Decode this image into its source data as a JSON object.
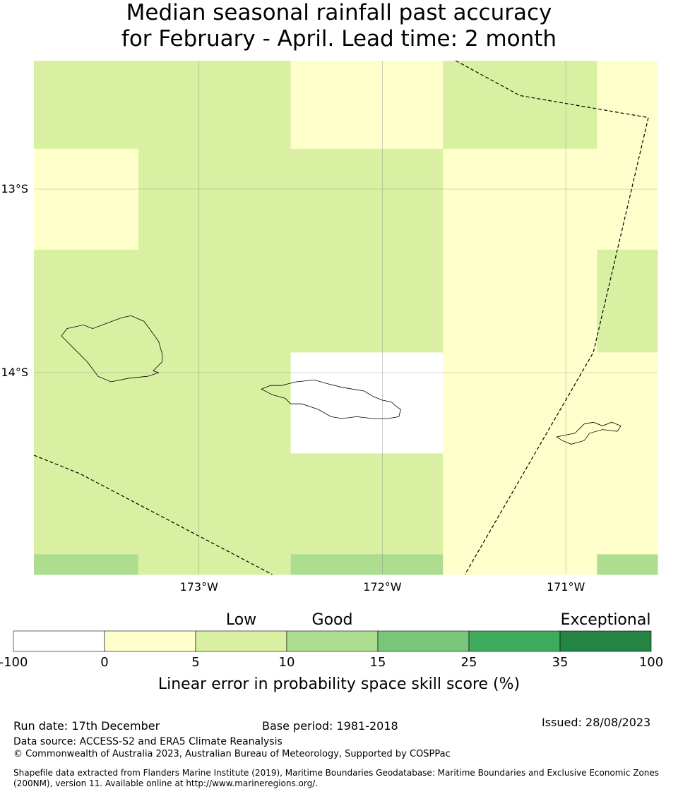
{
  "title": {
    "line1": "Median seasonal rainfall past accuracy",
    "line2": "for February - April. Lead time: 2 month"
  },
  "map": {
    "lon_range": [
      -173.9,
      -170.5
    ],
    "lat_range": [
      -12.3,
      -15.1
    ],
    "lat_ticks": [
      {
        "value": -13,
        "label": "13°S"
      },
      {
        "value": -14,
        "label": "14°S"
      }
    ],
    "lon_ticks": [
      {
        "value": -173,
        "label": "173°W"
      },
      {
        "value": -172,
        "label": "172°W"
      },
      {
        "value": -171,
        "label": "171°W"
      }
    ],
    "grid_on": true,
    "cell_lon_edges": [
      -173.9,
      -173.33,
      -172.5,
      -171.67,
      -170.83,
      -170.5
    ],
    "cell_lat_edges": [
      -12.3,
      -12.78,
      -13.33,
      -13.89,
      -14.44,
      -14.99,
      -15.1
    ],
    "cell_classes": [
      [
        2,
        2,
        1,
        2,
        1
      ],
      [
        1,
        2,
        2,
        1,
        1
      ],
      [
        2,
        2,
        2,
        1,
        2
      ],
      [
        2,
        2,
        0,
        1,
        1
      ],
      [
        2,
        2,
        2,
        1,
        1
      ],
      [
        3,
        2,
        3,
        1,
        3
      ]
    ],
    "boundaries": [
      [
        [
          -171.6,
          -12.3
        ],
        [
          -171.25,
          -12.49
        ],
        [
          -170.55,
          -12.61
        ],
        [
          -170.85,
          -13.89
        ],
        [
          -171.55,
          -15.1
        ]
      ],
      [
        [
          -173.9,
          -14.45
        ],
        [
          -173.65,
          -14.55
        ],
        [
          -172.6,
          -15.1
        ]
      ]
    ],
    "islands": [
      [
        [
          -173.75,
          -13.8
        ],
        [
          -173.72,
          -13.76
        ],
        [
          -173.63,
          -13.74
        ],
        [
          -173.58,
          -13.76
        ],
        [
          -173.5,
          -13.73
        ],
        [
          -173.42,
          -13.7
        ],
        [
          -173.37,
          -13.69
        ],
        [
          -173.3,
          -13.72
        ],
        [
          -173.27,
          -13.76
        ],
        [
          -173.22,
          -13.83
        ],
        [
          -173.2,
          -13.9
        ],
        [
          -173.2,
          -13.94
        ],
        [
          -173.25,
          -13.99
        ],
        [
          -173.22,
          -14.0
        ],
        [
          -173.28,
          -14.02
        ],
        [
          -173.38,
          -14.03
        ],
        [
          -173.48,
          -14.05
        ],
        [
          -173.55,
          -14.02
        ],
        [
          -173.61,
          -13.94
        ],
        [
          -173.68,
          -13.87
        ],
        [
          -173.75,
          -13.8
        ]
      ],
      [
        [
          -172.66,
          -14.09
        ],
        [
          -172.61,
          -14.07
        ],
        [
          -172.55,
          -14.07
        ],
        [
          -172.47,
          -14.05
        ],
        [
          -172.37,
          -14.04
        ],
        [
          -172.3,
          -14.06
        ],
        [
          -172.22,
          -14.08
        ],
        [
          -172.1,
          -14.1
        ],
        [
          -172.05,
          -14.13
        ],
        [
          -172.0,
          -14.15
        ],
        [
          -171.95,
          -14.16
        ],
        [
          -171.93,
          -14.18
        ],
        [
          -171.9,
          -14.2
        ],
        [
          -171.91,
          -14.24
        ],
        [
          -171.97,
          -14.25
        ],
        [
          -172.05,
          -14.25
        ],
        [
          -172.14,
          -14.24
        ],
        [
          -172.22,
          -14.25
        ],
        [
          -172.28,
          -14.24
        ],
        [
          -172.35,
          -14.2
        ],
        [
          -172.44,
          -14.17
        ],
        [
          -172.5,
          -14.17
        ],
        [
          -172.53,
          -14.14
        ],
        [
          -172.6,
          -14.12
        ],
        [
          -172.66,
          -14.09
        ]
      ],
      [
        [
          -171.05,
          -14.35
        ],
        [
          -170.95,
          -14.33
        ],
        [
          -170.9,
          -14.28
        ],
        [
          -170.85,
          -14.27
        ],
        [
          -170.8,
          -14.29
        ],
        [
          -170.75,
          -14.27
        ],
        [
          -170.7,
          -14.29
        ],
        [
          -170.72,
          -14.32
        ],
        [
          -170.8,
          -14.31
        ],
        [
          -170.87,
          -14.33
        ],
        [
          -170.9,
          -14.37
        ],
        [
          -170.97,
          -14.39
        ],
        [
          -171.02,
          -14.37
        ],
        [
          -171.05,
          -14.35
        ]
      ]
    ]
  },
  "colorbar": {
    "category_labels": [
      {
        "text": "Low",
        "at": 2.5
      },
      {
        "text": "Good",
        "at": 3.5
      },
      {
        "text": "Exceptional",
        "at": 6.5
      }
    ],
    "ticks": [
      "-100",
      "0",
      "5",
      "10",
      "15",
      "25",
      "35",
      "100"
    ],
    "colors": [
      "#ffffff",
      "#ffffcc",
      "#d9f0a3",
      "#addd8e",
      "#78c679",
      "#41ab5d",
      "#238443"
    ],
    "axis_label": "Linear error in probability space skill score (%)"
  },
  "footer": {
    "run_date": "Run date: 17th December",
    "base_period": "Base period: 1981-2018",
    "issued": "Issued: 28/08/2023",
    "data_source": "Data source: ACCESS-S2 and ERA5 Climate Reanalysis",
    "copyright": "© Commonwealth of Australia 2023, Australian Bureau of Meteorology, Supported by COSPPac",
    "shapefile_note": "Shapefile data extracted from Flanders Marine Institute (2019), Maritime Boundaries Geodatabase: Maritime Boundaries and Exclusive Economic Zones (200NM), version 11. Available online at http://www.marineregions.org/."
  }
}
